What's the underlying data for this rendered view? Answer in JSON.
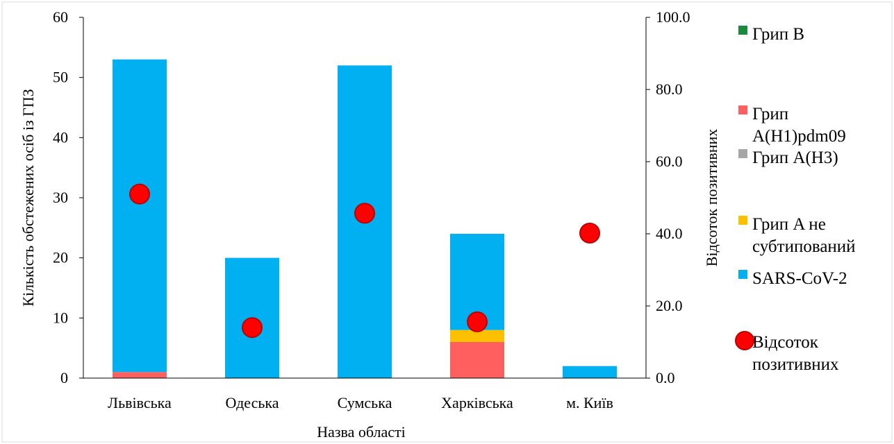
{
  "chart_data": {
    "type": "bar",
    "stacked": true,
    "categories": [
      "Львівська",
      "Одеська",
      "Сумська",
      "Харківська",
      "м. Київ"
    ],
    "xlabel": "Назва області",
    "ylabel": "Кількість обстежених осіб із ГПЗ",
    "y2label": "Відсоток позитивних",
    "ylim": [
      0,
      60
    ],
    "y_ticks": [
      "0",
      "10",
      "20",
      "30",
      "40",
      "50",
      "60"
    ],
    "y2lim": [
      0,
      100
    ],
    "y2_ticks": [
      "0.0",
      "20.0",
      "40.0",
      "60.0",
      "80.0",
      "100.0"
    ],
    "grid": false,
    "legend_position": "right",
    "series": [
      {
        "name": "Грип B",
        "legend_lines": [
          "Грип B"
        ],
        "color": "#1a8a3c",
        "axis": "left",
        "kind": "bar",
        "values": [
          0,
          0,
          0,
          0,
          0
        ]
      },
      {
        "name": "Грип A(H1)pdm09",
        "legend_lines": [
          "Грип",
          "A(H1)pdm09"
        ],
        "color": "#ff5f5f",
        "axis": "left",
        "kind": "bar",
        "values": [
          1,
          0,
          0,
          6,
          0
        ]
      },
      {
        "name": "Грип A(H3)",
        "legend_lines": [
          "Грип A(H3)"
        ],
        "color": "#a6a6a6",
        "axis": "left",
        "kind": "bar",
        "values": [
          0,
          0,
          0,
          0,
          0
        ]
      },
      {
        "name": "Грип A не субтипований",
        "legend_lines": [
          "Грип A не",
          "субтипований"
        ],
        "color": "#ffc000",
        "axis": "left",
        "kind": "bar",
        "values": [
          0,
          0,
          0,
          2,
          0
        ]
      },
      {
        "name": "SARS-CoV-2",
        "legend_lines": [
          "SARS-CoV-2"
        ],
        "color": "#00b0f0",
        "axis": "left",
        "kind": "bar",
        "values": [
          52,
          20,
          52,
          16,
          2
        ]
      },
      {
        "name": "Відсоток позитивних",
        "legend_lines": [
          "Відсоток",
          "позитивних"
        ],
        "color": "#ff0000",
        "axis": "right",
        "kind": "scatter",
        "values": [
          51.0,
          14.0,
          45.7,
          15.6,
          40.2
        ]
      }
    ]
  }
}
